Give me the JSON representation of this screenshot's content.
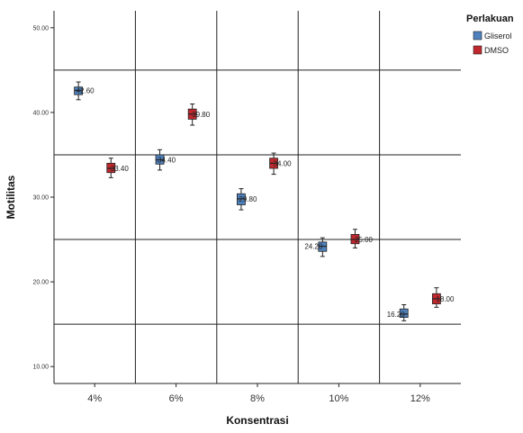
{
  "chart_data": {
    "type": "boxplot",
    "xlabel": "Konsentrasi",
    "ylabel": "Motilitas",
    "categories": [
      "4%",
      "6%",
      "8%",
      "10%",
      "12%"
    ],
    "yticks": [
      "10.00",
      "20.00",
      "30.00",
      "40.00",
      "50.00"
    ],
    "ylim": [
      8,
      52
    ],
    "grid": true,
    "legend": {
      "title": "Perlakuan",
      "position": "top-right"
    },
    "series": [
      {
        "name": "Gliserol",
        "color": "#4f81bd",
        "boxes": [
          {
            "min": 41.5,
            "q1": 42.1,
            "median": 42.6,
            "q3": 43.0,
            "max": 43.6,
            "label": "42.60"
          },
          {
            "min": 33.2,
            "q1": 33.9,
            "median": 34.4,
            "q3": 35.0,
            "max": 35.6,
            "label": "34.40"
          },
          {
            "min": 28.5,
            "q1": 29.1,
            "median": 29.8,
            "q3": 30.4,
            "max": 31.0,
            "label": "29.80"
          },
          {
            "min": 23.0,
            "q1": 23.6,
            "median": 24.2,
            "q3": 24.7,
            "max": 25.2,
            "label": "24.20"
          },
          {
            "min": 15.4,
            "q1": 15.8,
            "median": 16.2,
            "q3": 16.8,
            "max": 17.3,
            "label": "16.20"
          }
        ]
      },
      {
        "name": "DMSO",
        "color": "#c0282e",
        "boxes": [
          {
            "min": 32.3,
            "q1": 32.9,
            "median": 33.4,
            "q3": 34.0,
            "max": 34.6,
            "label": "33.40"
          },
          {
            "min": 38.5,
            "q1": 39.2,
            "median": 39.8,
            "q3": 40.4,
            "max": 41.0,
            "label": "39.80"
          },
          {
            "min": 32.7,
            "q1": 33.4,
            "median": 34.0,
            "q3": 34.6,
            "max": 35.2,
            "label": "34.00"
          },
          {
            "min": 24.0,
            "q1": 24.5,
            "median": 25.0,
            "q3": 25.6,
            "max": 26.2,
            "label": "25.00"
          },
          {
            "min": 17.0,
            "q1": 17.4,
            "median": 18.0,
            "q3": 18.6,
            "max": 19.3,
            "label": "18.00"
          }
        ]
      }
    ]
  }
}
